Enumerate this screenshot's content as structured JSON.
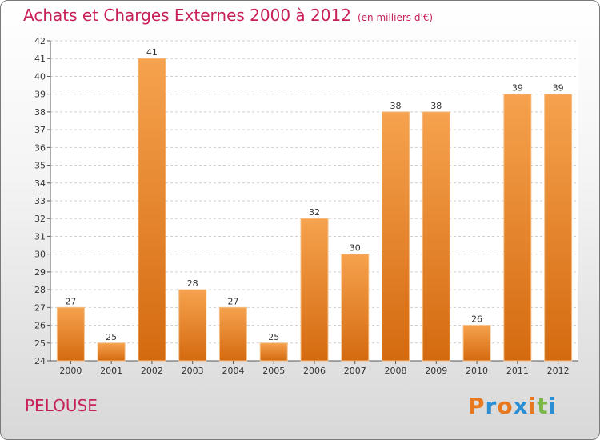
{
  "header": {
    "title": "Achats et Charges Externes 2000 à 2012",
    "subtitle": "(en milliers d'€)"
  },
  "footer": {
    "commune": "PELOUSE",
    "logo_letters": [
      "P",
      "r",
      "o",
      "x",
      "i",
      "t",
      "i"
    ],
    "logo_colors": [
      "#e8781e",
      "#2a8fd4",
      "#e8781e",
      "#2a8fd4",
      "#e8781e",
      "#7ab648",
      "#2a8fd4"
    ]
  },
  "colors": {
    "bar_top": "#f6a24e",
    "bar_bottom": "#d46a10",
    "title": "#c8205a"
  },
  "chart_data": {
    "type": "bar",
    "title": "Achats et Charges Externes 2000 à 2012",
    "categories": [
      "2000",
      "2001",
      "2002",
      "2003",
      "2004",
      "2005",
      "2006",
      "2007",
      "2008",
      "2009",
      "2010",
      "2011",
      "2012"
    ],
    "values": [
      27,
      25,
      41,
      28,
      27,
      25,
      32,
      30,
      38,
      38,
      26,
      39,
      39
    ],
    "ylim": [
      24,
      42
    ],
    "yticks": [
      24,
      25,
      26,
      27,
      28,
      29,
      30,
      31,
      32,
      33,
      34,
      35,
      36,
      37,
      38,
      39,
      40,
      41,
      42
    ],
    "grid": true,
    "xlabel": "",
    "ylabel": ""
  }
}
